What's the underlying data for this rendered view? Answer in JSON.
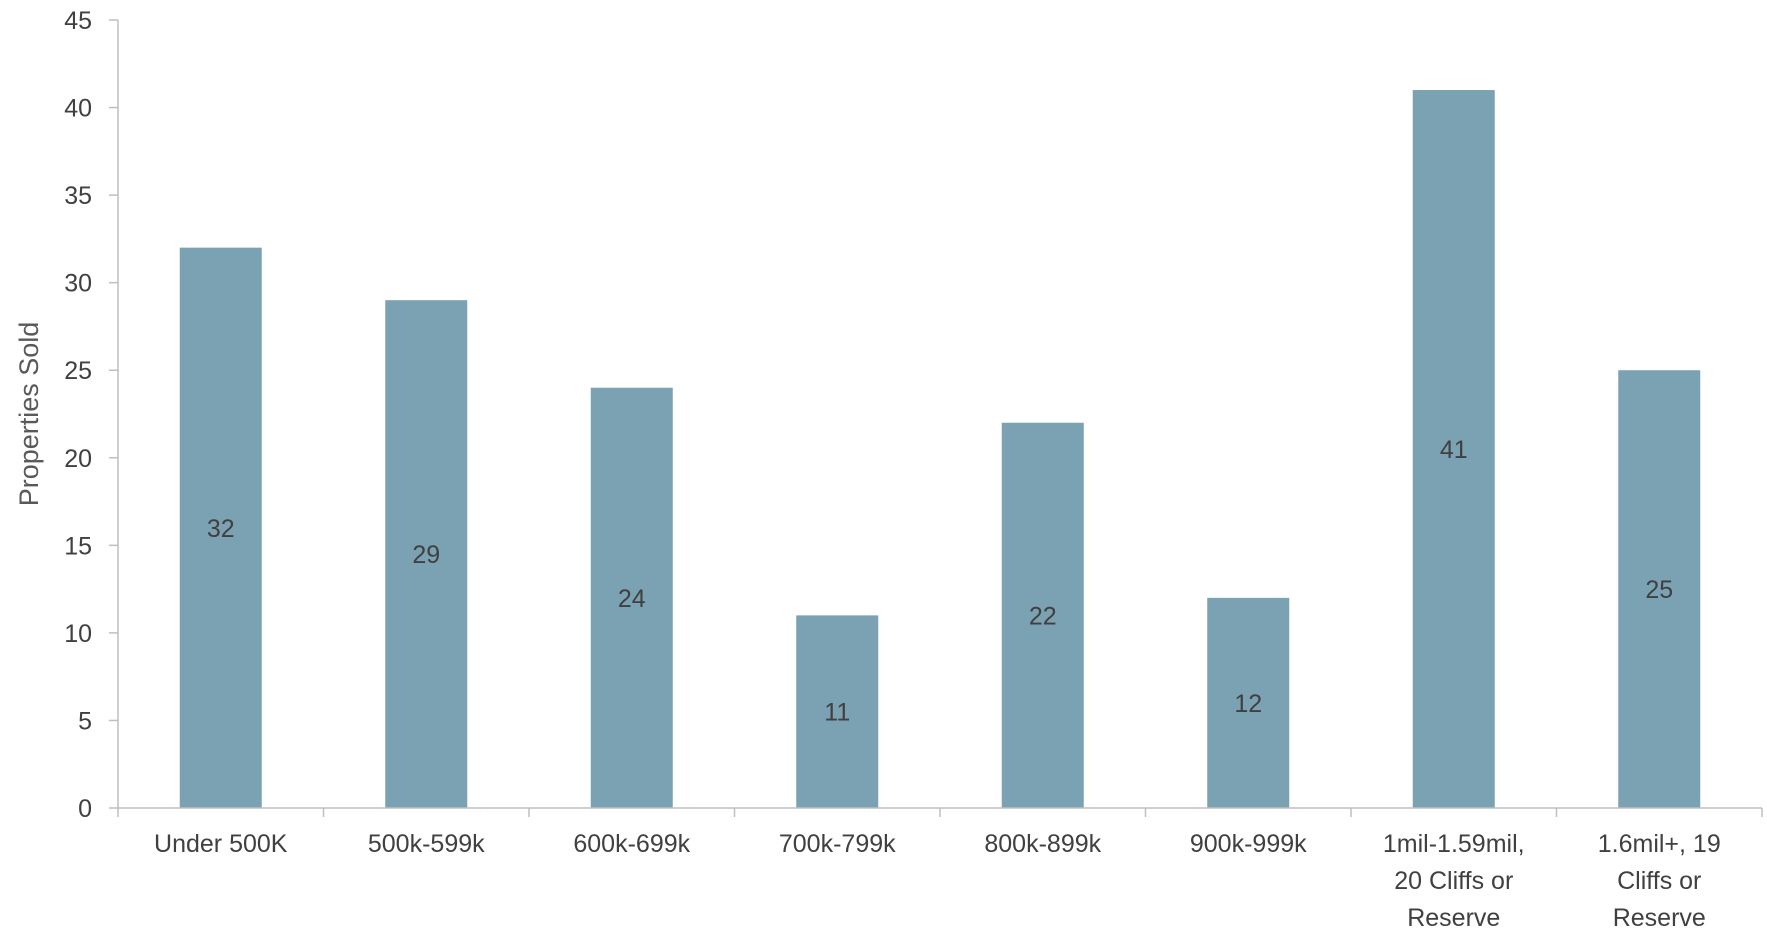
{
  "chart_data": {
    "type": "bar",
    "ylabel": "Properties Sold",
    "xlabel": "",
    "ylim": [
      0,
      45
    ],
    "ytick_step": 5,
    "bar_color": "#7aa2b2",
    "axis_color": "#bfbfbf",
    "categories": [
      [
        "Under 500K"
      ],
      [
        "500k-599k"
      ],
      [
        "600k-699k"
      ],
      [
        "700k-799k"
      ],
      [
        "800k-899k"
      ],
      [
        "900k-999k"
      ],
      [
        "1mil-1.59mil,",
        "20 Cliffs or",
        "Reserve"
      ],
      [
        "1.6mil+, 19",
        "Cliffs or",
        "Reserve"
      ]
    ],
    "values": [
      32,
      29,
      24,
      11,
      22,
      12,
      41,
      25
    ]
  }
}
